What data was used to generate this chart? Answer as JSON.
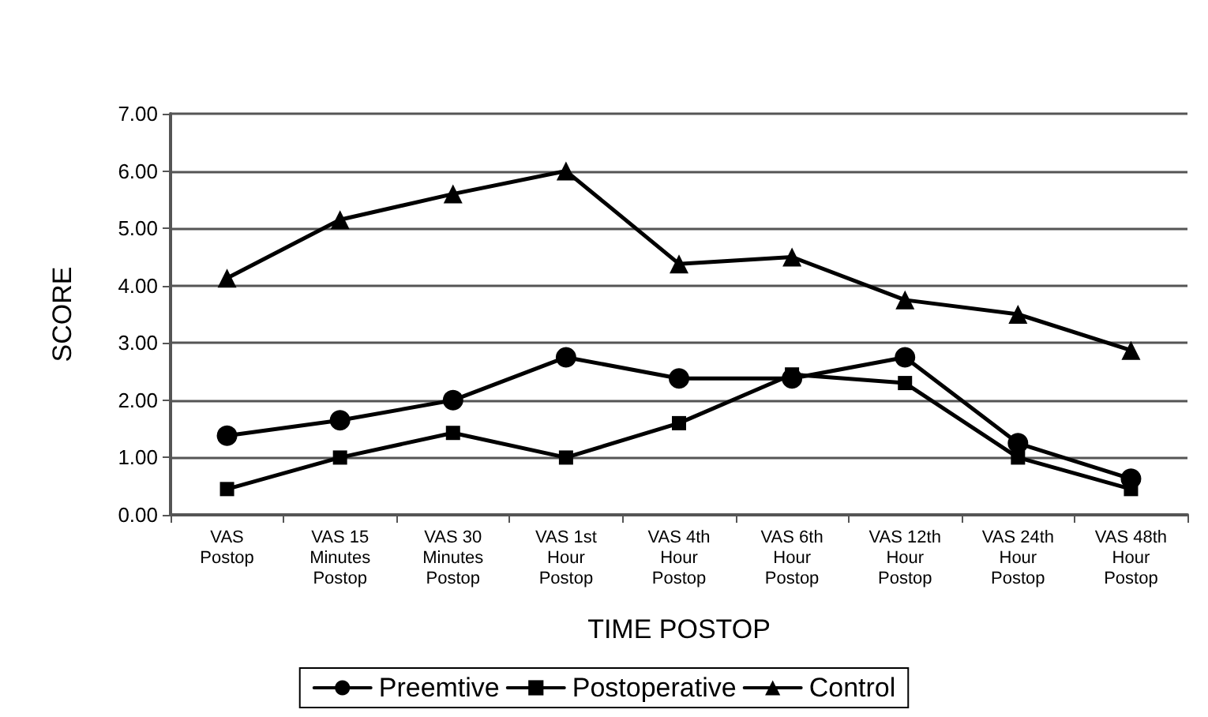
{
  "chart_data": {
    "type": "line",
    "xlabel": "TIME POSTOP",
    "ylabel": "SCORE",
    "categories": [
      "VAS\nPostop",
      "VAS 15\nMinutes\nPostop",
      "VAS 30\nMinutes\nPostop",
      "VAS 1st\nHour\nPostop",
      "VAS 4th\nHour\nPostop",
      "VAS 6th\nHour\nPostop",
      "VAS 12th\nHour\nPostop",
      "VAS 24th\nHour\nPostop",
      "VAS 48th\nHour\nPostop"
    ],
    "series": [
      {
        "name": "Preemtive",
        "color": "#000000",
        "marker": "circle",
        "values": [
          1.38,
          1.65,
          2.0,
          2.75,
          2.38,
          2.38,
          2.75,
          1.25,
          0.63
        ]
      },
      {
        "name": "Postoperative",
        "color": "#000000",
        "marker": "square",
        "values": [
          0.45,
          1.0,
          1.43,
          1.0,
          1.6,
          2.45,
          2.3,
          1.0,
          0.45
        ]
      },
      {
        "name": "Control",
        "color": "#000000",
        "marker": "triangle",
        "values": [
          4.13,
          5.15,
          5.6,
          6.0,
          4.38,
          4.5,
          3.75,
          3.5,
          2.87
        ]
      }
    ],
    "ylim": [
      0,
      7
    ],
    "yticks": [
      {
        "value": 0,
        "label": "0.00"
      },
      {
        "value": 1,
        "label": "1.00"
      },
      {
        "value": 2,
        "label": "2.00"
      },
      {
        "value": 3,
        "label": "3.00"
      },
      {
        "value": 4,
        "label": "4.00"
      },
      {
        "value": 5,
        "label": "5.00"
      },
      {
        "value": 6,
        "label": "6.00"
      },
      {
        "value": 7,
        "label": "7.00"
      }
    ],
    "grid": "y",
    "legend": "bottom",
    "line_style": "solid"
  }
}
